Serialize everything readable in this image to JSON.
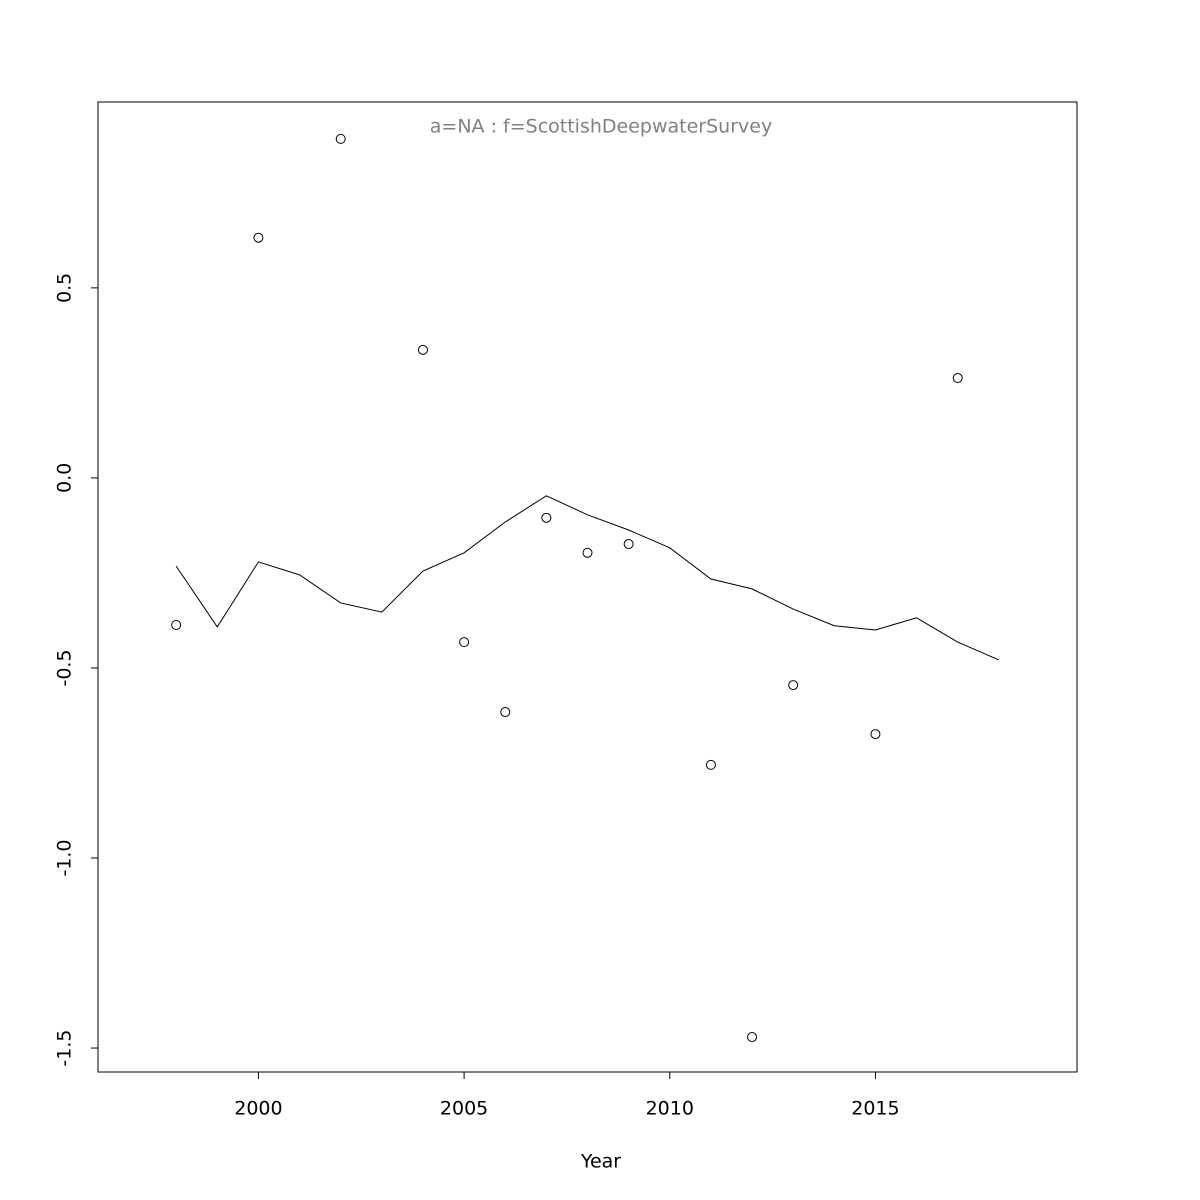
{
  "chart_data": {
    "type": "line",
    "title": "a=NA  :  f=ScottishDeepwaterSurvey",
    "xlabel": "Year",
    "x": [
      1998,
      1999,
      2000,
      2001,
      2002,
      2003,
      2004,
      2005,
      2006,
      2007,
      2008,
      2009,
      2010,
      2011,
      2012,
      2013,
      2014,
      2015,
      2016,
      2017,
      2018
    ],
    "series": [
      {
        "style": "points",
        "color": "#000000",
        "values": [
          -0.387,
          null,
          0.632,
          null,
          0.892,
          null,
          0.337,
          -0.432,
          -0.616,
          -0.105,
          -0.197,
          -0.174,
          null,
          -0.755,
          -1.471,
          -0.545,
          null,
          -0.674,
          null,
          0.263,
          null
        ]
      },
      {
        "style": "line",
        "color": "#000000",
        "values": [
          -0.232,
          -0.392,
          -0.221,
          -0.255,
          -0.329,
          -0.353,
          -0.245,
          -0.197,
          -0.116,
          -0.047,
          -0.097,
          -0.137,
          -0.184,
          -0.266,
          -0.292,
          -0.345,
          -0.389,
          -0.4,
          -0.368,
          -0.432,
          -0.479
        ]
      }
    ],
    "xlim": [
      1996.1,
      2019.9
    ],
    "xticks": [
      2000,
      2005,
      2010,
      2015
    ],
    "ylim": [
      -1.563,
      0.989
    ],
    "yticks": [
      {
        "value": -1.5,
        "label": "-1.5"
      },
      {
        "value": -1,
        "label": "-1.0"
      },
      {
        "value": -0.5,
        "label": "-0.5"
      },
      {
        "value": 0,
        "label": "0.0"
      },
      {
        "value": 0.5,
        "label": "0.5"
      }
    ],
    "title_color": "#808080"
  }
}
